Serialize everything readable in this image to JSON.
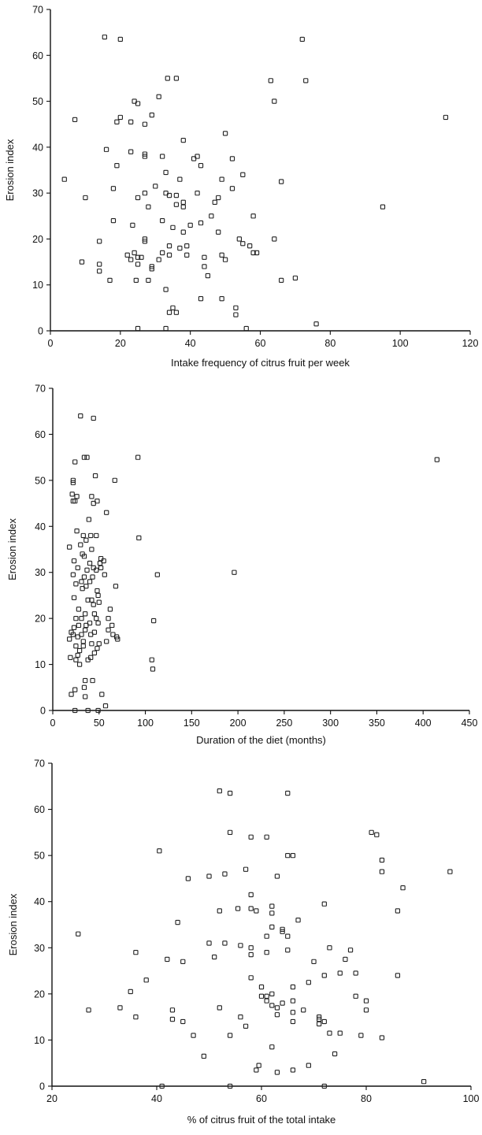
{
  "chart_data": [
    {
      "type": "scatter",
      "xlabel": "Intake frequency of citrus fruit per week",
      "ylabel": "Erosion index",
      "xlim": [
        0,
        120
      ],
      "ylim": [
        0,
        70
      ],
      "xticks": [
        "0",
        "20",
        "40",
        "60",
        "80",
        "100",
        "120"
      ],
      "yticks": [
        "0",
        "10",
        "20",
        "30",
        "40",
        "50",
        "60",
        "70"
      ],
      "grid": false,
      "points": [
        [
          4,
          33
        ],
        [
          7,
          46
        ],
        [
          9,
          15
        ],
        [
          10,
          29
        ],
        [
          14,
          19.5
        ],
        [
          14,
          14.5
        ],
        [
          14,
          13
        ],
        [
          15.5,
          64
        ],
        [
          16,
          39.5
        ],
        [
          17,
          11
        ],
        [
          18,
          31
        ],
        [
          18,
          24
        ],
        [
          19,
          45.5
        ],
        [
          19,
          36
        ],
        [
          20,
          46.5
        ],
        [
          20,
          63.5
        ],
        [
          22,
          16.5
        ],
        [
          23,
          15.5
        ],
        [
          23,
          39
        ],
        [
          23,
          45.5
        ],
        [
          23.5,
          23
        ],
        [
          24,
          50
        ],
        [
          24,
          17
        ],
        [
          24.5,
          11
        ],
        [
          25,
          49.5
        ],
        [
          25,
          29
        ],
        [
          25,
          16
        ],
        [
          25,
          14.5
        ],
        [
          25,
          0.5
        ],
        [
          26,
          16
        ],
        [
          27,
          30
        ],
        [
          27,
          45
        ],
        [
          27,
          38.5
        ],
        [
          27,
          38
        ],
        [
          27,
          20
        ],
        [
          27,
          19.5
        ],
        [
          28,
          27
        ],
        [
          28,
          11
        ],
        [
          29,
          47
        ],
        [
          29,
          13.5
        ],
        [
          29,
          14
        ],
        [
          30,
          31.5
        ],
        [
          31,
          51
        ],
        [
          31,
          15.5
        ],
        [
          32,
          38
        ],
        [
          32,
          24
        ],
        [
          32,
          17
        ],
        [
          33,
          34.5
        ],
        [
          33,
          30
        ],
        [
          33,
          9
        ],
        [
          33,
          0.5
        ],
        [
          33.5,
          55
        ],
        [
          34,
          29.5
        ],
        [
          34,
          18.5
        ],
        [
          34,
          16.5
        ],
        [
          34,
          4
        ],
        [
          35,
          22.5
        ],
        [
          35,
          5
        ],
        [
          36,
          55
        ],
        [
          36,
          29.5
        ],
        [
          36,
          27.5
        ],
        [
          36,
          4
        ],
        [
          37,
          18
        ],
        [
          37,
          33
        ],
        [
          38,
          41.5
        ],
        [
          38,
          21.5
        ],
        [
          38,
          28
        ],
        [
          38,
          27
        ],
        [
          39,
          18.5
        ],
        [
          39,
          16.5
        ],
        [
          40,
          23
        ],
        [
          41,
          37.5
        ],
        [
          42,
          38
        ],
        [
          42,
          30
        ],
        [
          43,
          36
        ],
        [
          43,
          23.5
        ],
        [
          43,
          7
        ],
        [
          44,
          16
        ],
        [
          44,
          14
        ],
        [
          45,
          12
        ],
        [
          46,
          25
        ],
        [
          47,
          28
        ],
        [
          48,
          21.5
        ],
        [
          48,
          29
        ],
        [
          49,
          33
        ],
        [
          49,
          16.5
        ],
        [
          49,
          7
        ],
        [
          50,
          43
        ],
        [
          50,
          15.5
        ],
        [
          52,
          37.5
        ],
        [
          52,
          31
        ],
        [
          53,
          5
        ],
        [
          53,
          3.5
        ],
        [
          54,
          20
        ],
        [
          55,
          34
        ],
        [
          55,
          19
        ],
        [
          56,
          0.5
        ],
        [
          57,
          18.5
        ],
        [
          58,
          17
        ],
        [
          58,
          25
        ],
        [
          59,
          17
        ],
        [
          63,
          54.5
        ],
        [
          64,
          50
        ],
        [
          64,
          20
        ],
        [
          66,
          11
        ],
        [
          66,
          32.5
        ],
        [
          70,
          11.5
        ],
        [
          72,
          63.5
        ],
        [
          73,
          54.5
        ],
        [
          76,
          1.5
        ],
        [
          95,
          27
        ],
        [
          113,
          46.5
        ]
      ]
    },
    {
      "type": "scatter",
      "xlabel": "Duration of the diet (months)",
      "ylabel": "Erosion index",
      "xlim": [
        0,
        450
      ],
      "ylim": [
        0,
        70
      ],
      "xticks": [
        "0",
        "50",
        "100",
        "150",
        "200",
        "250",
        "300",
        "350",
        "400",
        "450"
      ],
      "yticks": [
        "0",
        "10",
        "20",
        "30",
        "40",
        "50",
        "60",
        "70"
      ],
      "grid": false,
      "points": [
        [
          18,
          15.5
        ],
        [
          18,
          35.5
        ],
        [
          19,
          11.5
        ],
        [
          20,
          17
        ],
        [
          20,
          3.5
        ],
        [
          21,
          47
        ],
        [
          22,
          29.5
        ],
        [
          22,
          45.5
        ],
        [
          22,
          50
        ],
        [
          22,
          49.5
        ],
        [
          22,
          16.5
        ],
        [
          23,
          18
        ],
        [
          23,
          24.5
        ],
        [
          23,
          32.5
        ],
        [
          24,
          54
        ],
        [
          24,
          45.5
        ],
        [
          24,
          4.5
        ],
        [
          24,
          0
        ],
        [
          25,
          20
        ],
        [
          25,
          27.5
        ],
        [
          25,
          11
        ],
        [
          25,
          14
        ],
        [
          26,
          46.5
        ],
        [
          26,
          39
        ],
        [
          27,
          31
        ],
        [
          27,
          16
        ],
        [
          27,
          12
        ],
        [
          28,
          18.5
        ],
        [
          28,
          22
        ],
        [
          29,
          13
        ],
        [
          29,
          10
        ],
        [
          30,
          64
        ],
        [
          30,
          36
        ],
        [
          31,
          28
        ],
        [
          31,
          16.5
        ],
        [
          31,
          20
        ],
        [
          32,
          34
        ],
        [
          32,
          26.5
        ],
        [
          33,
          38
        ],
        [
          33,
          15
        ],
        [
          33,
          14
        ],
        [
          34,
          55
        ],
        [
          34,
          29
        ],
        [
          34,
          33.5
        ],
        [
          34,
          5
        ],
        [
          35,
          21
        ],
        [
          35,
          17.5
        ],
        [
          35,
          6.5
        ],
        [
          35,
          3
        ],
        [
          36,
          37
        ],
        [
          36,
          27
        ],
        [
          36,
          18.5
        ],
        [
          37,
          55
        ],
        [
          37,
          30.5
        ],
        [
          38,
          24
        ],
        [
          38,
          11
        ],
        [
          38,
          0
        ],
        [
          39,
          41.5
        ],
        [
          40,
          32
        ],
        [
          40,
          19
        ],
        [
          40,
          28
        ],
        [
          41,
          38
        ],
        [
          41,
          16.5
        ],
        [
          41,
          11.5
        ],
        [
          42,
          46.5
        ],
        [
          42,
          35
        ],
        [
          42,
          24
        ],
        [
          42,
          14.5
        ],
        [
          43,
          29
        ],
        [
          43,
          6.5
        ],
        [
          44,
          63.5
        ],
        [
          44,
          45
        ],
        [
          44,
          31
        ],
        [
          44,
          23
        ],
        [
          45,
          21
        ],
        [
          45,
          17
        ],
        [
          45,
          12.5
        ],
        [
          46,
          51
        ],
        [
          47,
          38
        ],
        [
          47,
          30.5
        ],
        [
          47,
          20
        ],
        [
          48,
          45.5
        ],
        [
          48,
          26
        ],
        [
          48,
          13.5
        ],
        [
          49,
          25
        ],
        [
          49,
          19
        ],
        [
          49,
          0
        ],
        [
          50,
          23.5
        ],
        [
          50,
          14.5
        ],
        [
          51,
          32
        ],
        [
          52,
          33
        ],
        [
          52,
          31
        ],
        [
          53,
          3.5
        ],
        [
          55,
          32.5
        ],
        [
          56,
          29.5
        ],
        [
          57,
          1
        ],
        [
          58,
          43
        ],
        [
          58,
          15
        ],
        [
          60,
          20
        ],
        [
          60,
          17.5
        ],
        [
          62,
          22
        ],
        [
          64,
          18.5
        ],
        [
          65,
          16.5
        ],
        [
          67,
          50
        ],
        [
          68,
          27
        ],
        [
          69,
          16
        ],
        [
          70,
          15.5
        ],
        [
          92,
          55
        ],
        [
          93,
          37.5
        ],
        [
          107,
          11
        ],
        [
          108,
          9
        ],
        [
          109,
          19.5
        ],
        [
          113,
          29.5
        ],
        [
          196,
          30
        ],
        [
          415,
          54.5
        ]
      ]
    },
    {
      "type": "scatter",
      "xlabel": "% of citrus fruit of the total intake",
      "ylabel": "Erosion index",
      "xlim": [
        20,
        100
      ],
      "ylim": [
        0,
        70
      ],
      "xticks": [
        "20",
        "40",
        "60",
        "80",
        "100"
      ],
      "yticks": [
        "0",
        "10",
        "20",
        "30",
        "40",
        "50",
        "60",
        "70"
      ],
      "grid": false,
      "points": [
        [
          25,
          33
        ],
        [
          27,
          16.5
        ],
        [
          33,
          17
        ],
        [
          35,
          20.5
        ],
        [
          36,
          29
        ],
        [
          36,
          15
        ],
        [
          38,
          23
        ],
        [
          40.5,
          51
        ],
        [
          41,
          0
        ],
        [
          42,
          27.5
        ],
        [
          43,
          16.5
        ],
        [
          43,
          14.5
        ],
        [
          44,
          35.5
        ],
        [
          45,
          27
        ],
        [
          45,
          14
        ],
        [
          46,
          45
        ],
        [
          47,
          11
        ],
        [
          49,
          6.5
        ],
        [
          50,
          31
        ],
        [
          50,
          45.5
        ],
        [
          51,
          28
        ],
        [
          52,
          64
        ],
        [
          52,
          38
        ],
        [
          52,
          17
        ],
        [
          53,
          46
        ],
        [
          53,
          31
        ],
        [
          54,
          55
        ],
        [
          54,
          63.5
        ],
        [
          54,
          11
        ],
        [
          54,
          0
        ],
        [
          55.5,
          38.5
        ],
        [
          56,
          15
        ],
        [
          56,
          30.5
        ],
        [
          57,
          47
        ],
        [
          57,
          13
        ],
        [
          58,
          54
        ],
        [
          58,
          41.5
        ],
        [
          58,
          38.5
        ],
        [
          58,
          30
        ],
        [
          58,
          28.5
        ],
        [
          58,
          23.5
        ],
        [
          59,
          38
        ],
        [
          59,
          3.5
        ],
        [
          59.5,
          4.5
        ],
        [
          60,
          21.5
        ],
        [
          60,
          19.5
        ],
        [
          61,
          54
        ],
        [
          61,
          32.5
        ],
        [
          61,
          29
        ],
        [
          61,
          18.5
        ],
        [
          61,
          19.5
        ],
        [
          62,
          39
        ],
        [
          62,
          37.5
        ],
        [
          62,
          34.5
        ],
        [
          62,
          20
        ],
        [
          62,
          17.5
        ],
        [
          62,
          8.5
        ],
        [
          63,
          45.5
        ],
        [
          63,
          17
        ],
        [
          63,
          15.5
        ],
        [
          63,
          3
        ],
        [
          64,
          34
        ],
        [
          64,
          33.5
        ],
        [
          64,
          18
        ],
        [
          65,
          63.5
        ],
        [
          65,
          50
        ],
        [
          65,
          32.5
        ],
        [
          65,
          29.5
        ],
        [
          66,
          50
        ],
        [
          66,
          21.5
        ],
        [
          66,
          18.5
        ],
        [
          66,
          16
        ],
        [
          66,
          14
        ],
        [
          66,
          3.5
        ],
        [
          67,
          36
        ],
        [
          68,
          16.5
        ],
        [
          69,
          22.5
        ],
        [
          69,
          4.5
        ],
        [
          70,
          27
        ],
        [
          71,
          15
        ],
        [
          71,
          14.5
        ],
        [
          71,
          13.5
        ],
        [
          72,
          39.5
        ],
        [
          72,
          24
        ],
        [
          72,
          14
        ],
        [
          72,
          0
        ],
        [
          73,
          30
        ],
        [
          73,
          11.5
        ],
        [
          74,
          7
        ],
        [
          75,
          24.5
        ],
        [
          75,
          11.5
        ],
        [
          76,
          27.5
        ],
        [
          77,
          29.5
        ],
        [
          78,
          24.5
        ],
        [
          78,
          19.5
        ],
        [
          79,
          11
        ],
        [
          80,
          18.5
        ],
        [
          80,
          16.5
        ],
        [
          81,
          55
        ],
        [
          82,
          54.5
        ],
        [
          83,
          49
        ],
        [
          83,
          46.5
        ],
        [
          83,
          10.5
        ],
        [
          86,
          38
        ],
        [
          86,
          24
        ],
        [
          87,
          43
        ],
        [
          91,
          1
        ],
        [
          96,
          46.5
        ]
      ]
    }
  ]
}
